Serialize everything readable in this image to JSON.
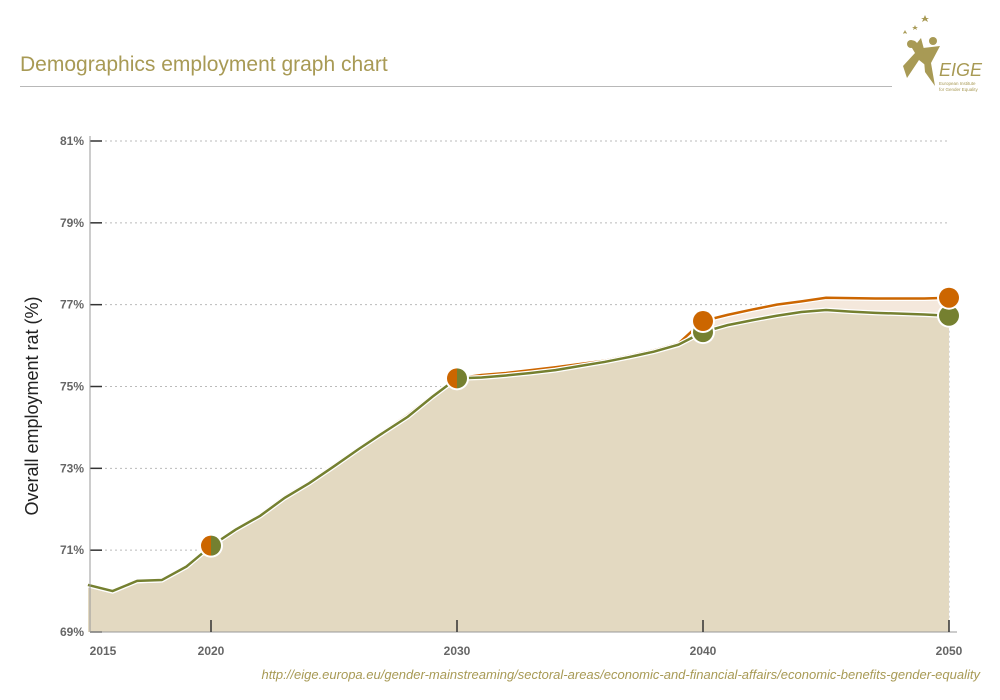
{
  "title": "Demographics employment graph chart",
  "logo": {
    "text": "EIGE",
    "subtitle": "European Institute for Gender Equality"
  },
  "source_url": "http://eige.europa.eu/gender-mainstreaming/sectoral-areas/economic-and-financial-affairs/economic-benefits-gender-equality",
  "colors": {
    "orange": "#cc6600",
    "green": "#758030",
    "fill": "#e3d9c1",
    "accent": "#a89a55"
  },
  "chart_data": {
    "type": "line",
    "title": "",
    "xlabel": "",
    "ylabel": "Overall employment rat (%)",
    "xlim": [
      2015,
      2050
    ],
    "ylim": [
      69,
      81
    ],
    "xticks": [
      "2015",
      "2020",
      "2030",
      "2040",
      "2050"
    ],
    "yticks": [
      "69%",
      "71%",
      "73%",
      "75%",
      "77%",
      "79%",
      "81%"
    ],
    "grid": true,
    "x": [
      2015,
      2016,
      2017,
      2018,
      2019,
      2020,
      2021,
      2022,
      2023,
      2024,
      2025,
      2026,
      2027,
      2028,
      2029,
      2030,
      2031,
      2032,
      2033,
      2034,
      2035,
      2036,
      2037,
      2038,
      2039,
      2040,
      2041,
      2042,
      2043,
      2044,
      2045,
      2046,
      2047,
      2048,
      2049,
      2050
    ],
    "markers_at": [
      2020,
      2030,
      2040,
      2050
    ],
    "series": [
      {
        "color": "#cc6600",
        "values": [
          70.15,
          70.0,
          70.25,
          70.27,
          70.6,
          71.12,
          71.52,
          71.87,
          72.31,
          72.67,
          73.08,
          73.5,
          73.9,
          74.3,
          74.78,
          75.2,
          75.28,
          75.33,
          75.4,
          75.47,
          75.55,
          75.63,
          75.75,
          75.88,
          76.05,
          76.6,
          76.75,
          76.88,
          77.0,
          77.08,
          77.17,
          77.16,
          77.15,
          77.15,
          77.15,
          77.17
        ]
      },
      {
        "color": "#758030",
        "values": [
          70.15,
          70.0,
          70.25,
          70.27,
          70.6,
          71.1,
          71.5,
          71.84,
          72.28,
          72.64,
          73.05,
          73.47,
          73.87,
          74.26,
          74.75,
          75.2,
          75.22,
          75.27,
          75.33,
          75.4,
          75.5,
          75.6,
          75.72,
          75.85,
          76.02,
          76.33,
          76.5,
          76.62,
          76.73,
          76.82,
          76.87,
          76.83,
          76.8,
          76.78,
          76.76,
          76.73
        ]
      }
    ]
  }
}
